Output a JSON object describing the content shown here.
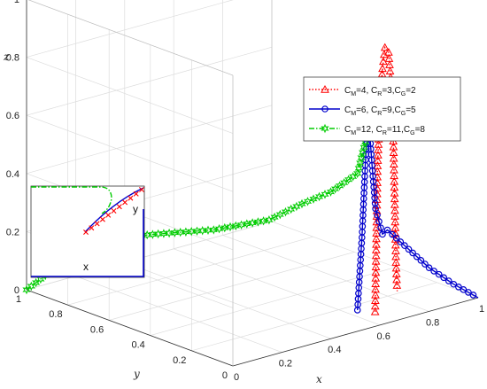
{
  "chart_data": {
    "type": "line",
    "projection": "3d",
    "title": "",
    "axes": {
      "x": {
        "label": "x",
        "range": [
          0,
          1
        ],
        "ticks": [
          "0",
          "0.2",
          "0.4",
          "0.6",
          "0.8",
          "1"
        ]
      },
      "y": {
        "label": "y",
        "range": [
          0,
          1
        ],
        "ticks": [
          "0",
          "0.2",
          "0.4",
          "0.6",
          "0.8",
          "1"
        ]
      },
      "z": {
        "label": "z",
        "range": [
          0,
          1
        ],
        "ticks": [
          "0",
          "0.2",
          "0.4",
          "0.6",
          "0.8",
          "1"
        ]
      }
    },
    "grid": true,
    "legend": {
      "position": "top-right"
    },
    "series": [
      {
        "name_parts": [
          "C",
          "M",
          "=4, C",
          "R",
          "=3,C",
          "G",
          "=2"
        ],
        "color": "#ff0000",
        "line": "dotted",
        "marker": "triangle",
        "points": [
          [
            0.58,
            0.0,
            0.05
          ],
          [
            0.585,
            0.0,
            0.3
          ],
          [
            0.59,
            0.0,
            0.55
          ],
          [
            0.6,
            0.0,
            0.75
          ],
          [
            0.61,
            0.0,
            0.88
          ],
          [
            0.62,
            0.0,
            0.95
          ],
          [
            0.635,
            0.0,
            0.93
          ],
          [
            0.645,
            0.0,
            0.82
          ],
          [
            0.655,
            0.0,
            0.6
          ],
          [
            0.66,
            0.0,
            0.4
          ],
          [
            0.665,
            0.0,
            0.2
          ],
          [
            0.67,
            0.0,
            0.1
          ]
        ]
      },
      {
        "name_parts": [
          "C",
          "M",
          "=6, C",
          "R",
          "=9,C",
          "G",
          "=5"
        ],
        "color": "#0000cc",
        "line": "solid",
        "marker": "circle",
        "points": [
          [
            0.55,
            0.05,
            0.05
          ],
          [
            0.56,
            0.04,
            0.3
          ],
          [
            0.565,
            0.03,
            0.55
          ],
          [
            0.57,
            0.02,
            0.72
          ],
          [
            0.58,
            0.015,
            0.55
          ],
          [
            0.59,
            0.01,
            0.4
          ],
          [
            0.61,
            0.0,
            0.31
          ],
          [
            0.63,
            0.0,
            0.32
          ],
          [
            0.65,
            0.0,
            0.3
          ],
          [
            0.7,
            0.0,
            0.25
          ],
          [
            0.8,
            0.0,
            0.15
          ],
          [
            0.9,
            0.0,
            0.07
          ],
          [
            1.0,
            0.0,
            0.0
          ]
        ]
      },
      {
        "name_parts": [
          "C",
          "M",
          "=12, C",
          "R",
          "=11,C",
          "G",
          "=8"
        ],
        "color": "#00cc00",
        "line": "dashdot",
        "marker": "hexagram",
        "points": [
          [
            0.0,
            1.0,
            0.0
          ],
          [
            0.05,
            0.9,
            0.1
          ],
          [
            0.1,
            0.8,
            0.2
          ],
          [
            0.2,
            0.6,
            0.25
          ],
          [
            0.3,
            0.45,
            0.28
          ],
          [
            0.4,
            0.3,
            0.33
          ],
          [
            0.45,
            0.2,
            0.4
          ],
          [
            0.5,
            0.12,
            0.45
          ],
          [
            0.55,
            0.05,
            0.52
          ],
          [
            0.565,
            0.03,
            0.63
          ],
          [
            0.57,
            0.02,
            0.74
          ]
        ]
      }
    ],
    "inset": {
      "x_label": "x",
      "y_label": "y"
    }
  }
}
